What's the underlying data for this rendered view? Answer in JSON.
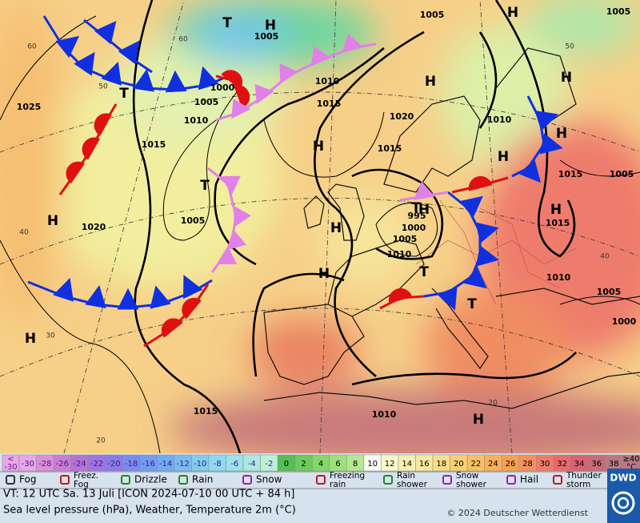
{
  "map": {
    "centers": [
      "H",
      "T",
      "T",
      "T",
      "H",
      "H",
      "H",
      "T",
      "H",
      "H",
      "T",
      "H",
      "H",
      "H",
      "H",
      "H",
      "H",
      "H",
      "H",
      "T"
    ],
    "isobar_labels": [
      1025,
      1015,
      1010,
      1005,
      1000,
      1005,
      1020,
      1010,
      1015,
      1020,
      1015,
      995,
      1000,
      1005,
      1010,
      1010,
      1015,
      1005,
      1015,
      1010,
      1005,
      1000,
      1005,
      1005,
      1015,
      1010,
      1005
    ],
    "temperature_labels": [
      60,
      50,
      40,
      30,
      20,
      60,
      50,
      40,
      20
    ]
  },
  "scale": {
    "low_label": [
      "<",
      "-30"
    ],
    "cells": [
      {
        "value": -30,
        "color": "#eaa6ea"
      },
      {
        "value": -28,
        "color": "#dc90dc"
      },
      {
        "value": -26,
        "color": "#cc7cd4"
      },
      {
        "value": -24,
        "color": "#b474d4"
      },
      {
        "value": -22,
        "color": "#a074e0"
      },
      {
        "value": -20,
        "color": "#8a7ce8"
      },
      {
        "value": -18,
        "color": "#7a8cf0"
      },
      {
        "value": -16,
        "color": "#729cf0"
      },
      {
        "value": -14,
        "color": "#72acf0"
      },
      {
        "value": -12,
        "color": "#7abcf0"
      },
      {
        "value": -10,
        "color": "#82ccf0"
      },
      {
        "value": -8,
        "color": "#8cdaf0"
      },
      {
        "value": -6,
        "color": "#9ce2e8"
      },
      {
        "value": -4,
        "color": "#ace8e0"
      },
      {
        "value": -2,
        "color": "#bcf0d8"
      },
      {
        "value": 0,
        "color": "#52c052"
      },
      {
        "value": 2,
        "color": "#6acc5a"
      },
      {
        "value": 4,
        "color": "#84d86a"
      },
      {
        "value": 6,
        "color": "#9ce07a"
      },
      {
        "value": 8,
        "color": "#b4e892"
      },
      {
        "value": 10,
        "color": "#fafaf2"
      },
      {
        "value": 12,
        "color": "#fafacc"
      },
      {
        "value": 14,
        "color": "#f8f0b2"
      },
      {
        "value": 16,
        "color": "#f8e8a0"
      },
      {
        "value": 18,
        "color": "#f8de88"
      },
      {
        "value": 20,
        "color": "#f8d072"
      },
      {
        "value": 22,
        "color": "#f8c062"
      },
      {
        "value": 24,
        "color": "#f8b05a"
      },
      {
        "value": 26,
        "color": "#f8a052"
      },
      {
        "value": 28,
        "color": "#f8905a"
      },
      {
        "value": 30,
        "color": "#f07a6a"
      },
      {
        "value": 32,
        "color": "#e86a6a"
      },
      {
        "value": 34,
        "color": "#d86272"
      },
      {
        "value": 36,
        "color": "#c86a7a"
      },
      {
        "value": 38,
        "color": "#b87a82"
      }
    ],
    "high_label": [
      "≥40",
      "°C"
    ]
  },
  "legend": [
    {
      "label": [
        "Fog"
      ]
    },
    {
      "label": [
        "Freez.",
        "Fog"
      ]
    },
    {
      "label": [
        "Drizzle"
      ]
    },
    {
      "label": [
        "Rain"
      ]
    },
    {
      "label": [
        "Snow"
      ]
    },
    {
      "label": [
        "Freezing",
        "rain"
      ]
    },
    {
      "label": [
        "Rain",
        "shower"
      ]
    },
    {
      "label": [
        "Snow",
        "shower"
      ]
    },
    {
      "label": [
        "Hail"
      ]
    },
    {
      "label": [
        "Thunder",
        "storm"
      ]
    }
  ],
  "footer": {
    "valid_time": "VT: 12 UTC Sa.  13 Juli [ICON 2024-07-10  00 UTC + 84 h]",
    "description": "Sea level pressure (hPa), Weather, Temperature 2m (°C)",
    "copyright": "© 2024 Deutscher Wetterdienst",
    "logo": "DWD"
  }
}
